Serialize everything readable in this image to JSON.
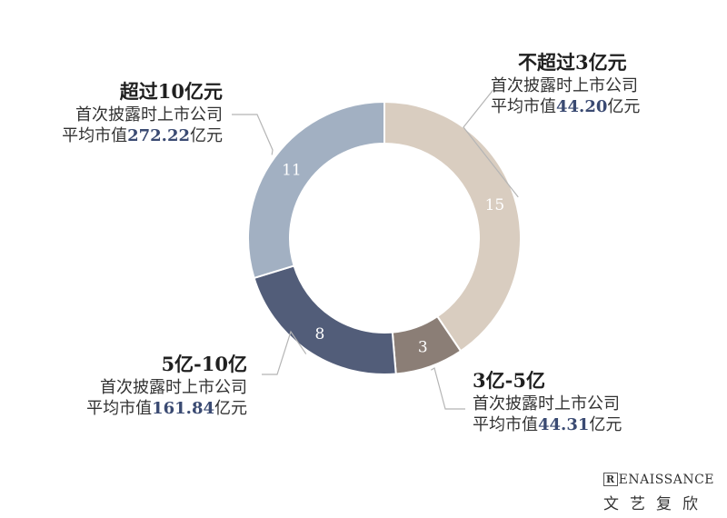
{
  "chart_data": {
    "type": "pie",
    "variant": "donut",
    "categories": [
      "不超过3亿元",
      "3亿-5亿",
      "5亿-10亿",
      "超过10亿元"
    ],
    "values": [
      15,
      3,
      8,
      11
    ],
    "colors": [
      "#d9cdc0",
      "#8b7e76",
      "#525d79",
      "#a2b0c2"
    ],
    "label_colors": [
      "#ffffff",
      "#ffffff",
      "#ffffff",
      "#ffffff"
    ],
    "callouts": [
      {
        "title": "不超过3亿元",
        "line1": "首次披露时上市公司",
        "prefix": "平均市值",
        "value": "44.20",
        "suffix": "亿元"
      },
      {
        "title": "3亿-5亿",
        "line1": "首次披露时上市公司",
        "prefix": "平均市值",
        "value": "44.31",
        "suffix": "亿元"
      },
      {
        "title": "5亿-10亿",
        "line1": "首次披露时上市公司",
        "prefix": "平均市值",
        "value": "161.84",
        "suffix": "亿元"
      },
      {
        "title": "超过10亿元",
        "line1": "首次披露时上市公司",
        "prefix": "平均市值",
        "value": "272.22",
        "suffix": "亿元"
      }
    ]
  },
  "logo": {
    "mark": "R",
    "brand": "ENAISSANCE",
    "cn": "文艺复欣"
  }
}
